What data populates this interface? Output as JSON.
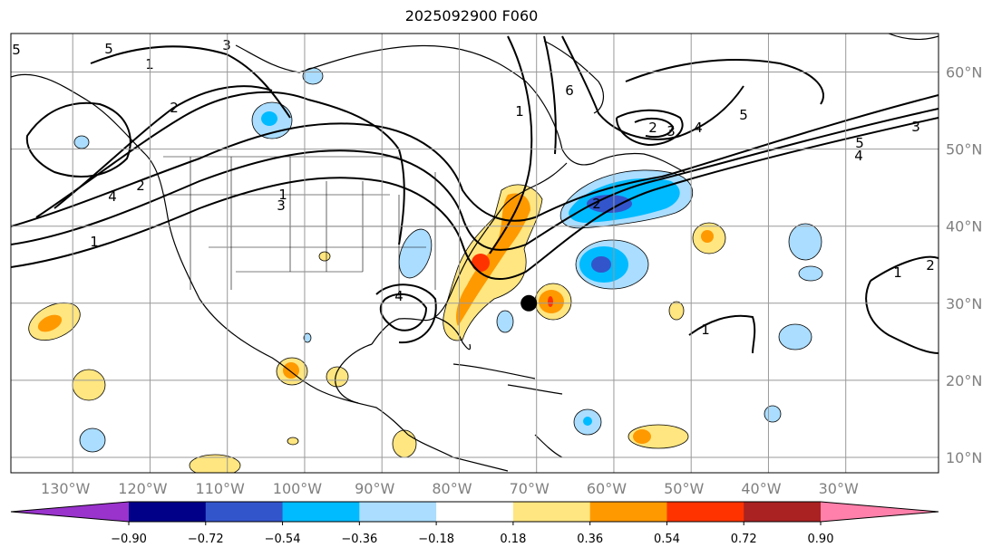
{
  "title": "2025092900 F060",
  "map": {
    "lon_range": [
      -138,
      -18
    ],
    "lat_range": [
      8,
      65
    ],
    "longitude_ticks": [
      {
        "lon": -130,
        "label": "130°W"
      },
      {
        "lon": -120,
        "label": "120°W"
      },
      {
        "lon": -110,
        "label": "110°W"
      },
      {
        "lon": -100,
        "label": "100°W"
      },
      {
        "lon": -90,
        "label": "90°W"
      },
      {
        "lon": -80,
        "label": "80°W"
      },
      {
        "lon": -70,
        "label": "70°W"
      },
      {
        "lon": -60,
        "label": "60°W"
      },
      {
        "lon": -50,
        "label": "50°W"
      },
      {
        "lon": -40,
        "label": "40°W"
      },
      {
        "lon": -30,
        "label": "30°W"
      }
    ],
    "latitude_ticks": [
      {
        "lat": 60,
        "label": "60°N"
      },
      {
        "lat": 50,
        "label": "50°N"
      },
      {
        "lat": 40,
        "label": "40°N"
      },
      {
        "lat": 30,
        "label": "30°N"
      },
      {
        "lat": 20,
        "label": "20°N"
      },
      {
        "lat": 10,
        "label": "10°N"
      }
    ],
    "grid": true,
    "storm_marker": {
      "lon": -71,
      "lat": 30,
      "color": "#000000"
    }
  },
  "colorbar": {
    "colors": [
      "#9933cc",
      "#000088",
      "#3355cc",
      "#00bbff",
      "#aaddff",
      "#ffffff",
      "#ffe680",
      "#ff9900",
      "#ff3300",
      "#aa2222",
      "#ff80aa"
    ],
    "levels": [
      "−0.90",
      "−0.72",
      "−0.54",
      "−0.36",
      "−0.18",
      "0.18",
      "0.36",
      "0.54",
      "0.72",
      "0.90"
    ],
    "extend": "both"
  },
  "contour_labels": [
    "1",
    "2",
    "3",
    "4",
    "5",
    "6",
    "1",
    "2",
    "3",
    "4",
    "5",
    "1",
    "2",
    "3",
    "4",
    "5",
    "1",
    "2",
    "3",
    "4",
    "5",
    "1",
    "2",
    "1"
  ]
}
